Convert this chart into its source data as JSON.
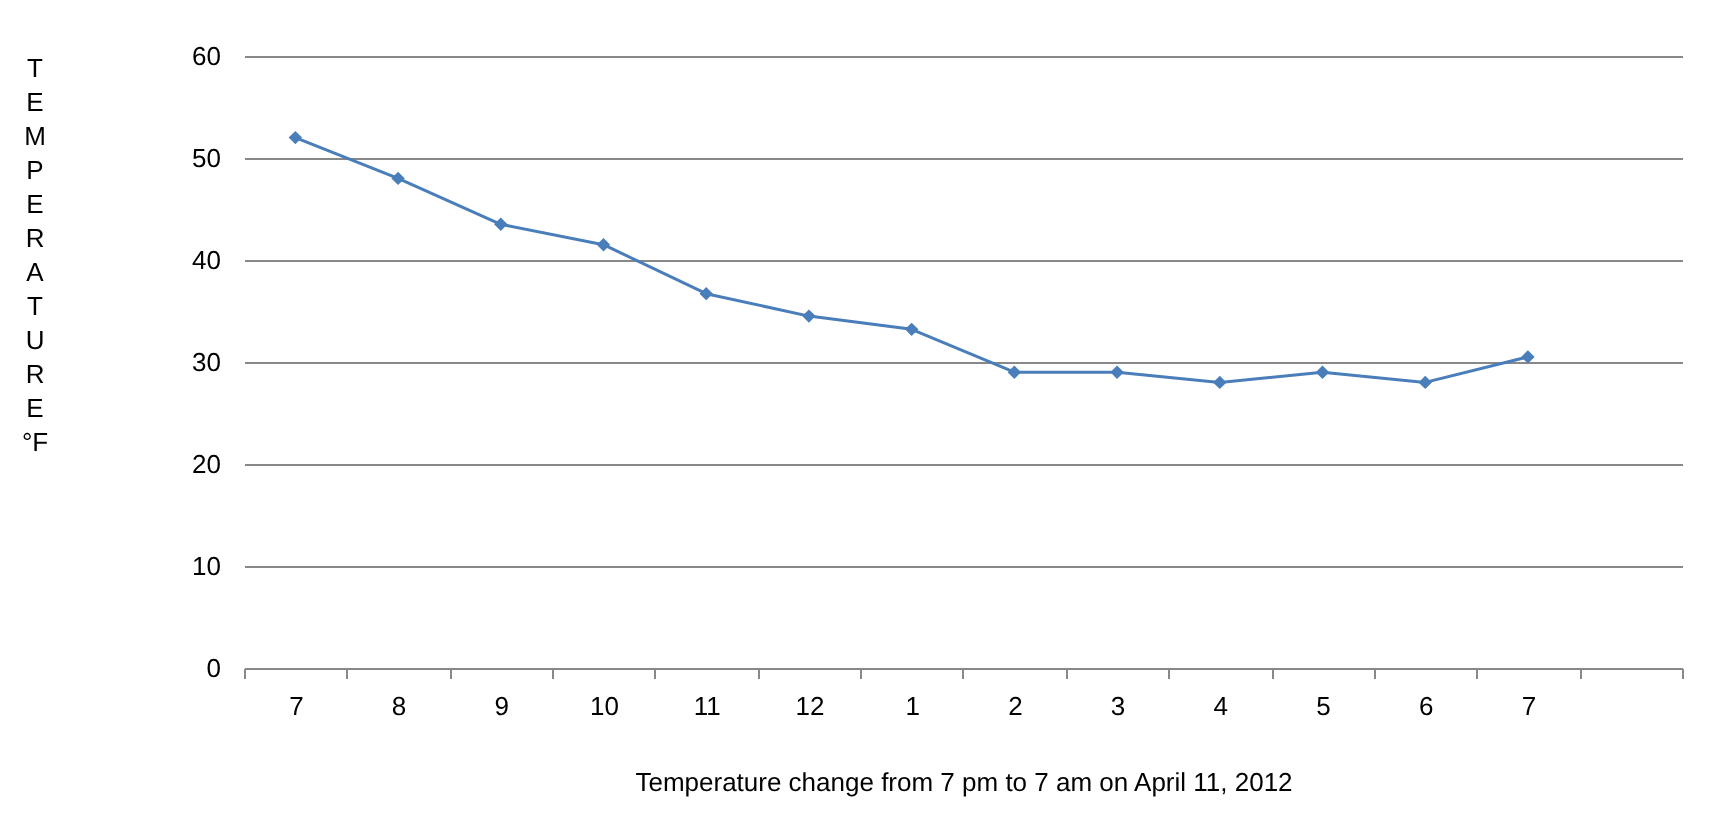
{
  "chart_data": {
    "type": "line",
    "xlabel": "Temperature change from 7 pm to 7 am on April 11, 2012",
    "ylabel": "TEMPERATURE °F",
    "categories": [
      "7",
      "8",
      "9",
      "10",
      "11",
      "12",
      "1",
      "2",
      "3",
      "4",
      "5",
      "6",
      "7",
      null
    ],
    "series": [
      {
        "color": "#4a7ebb",
        "values": [
          52,
          48,
          43.5,
          41.5,
          36.7,
          34.5,
          33.2,
          29,
          29,
          28,
          29,
          28,
          30.5,
          null
        ]
      }
    ],
    "ylim": [
      0,
      60
    ],
    "yticks": [
      0,
      10,
      20,
      30,
      40,
      50,
      60
    ],
    "grid": "y",
    "marker": "diamond",
    "line_style": "solid"
  }
}
